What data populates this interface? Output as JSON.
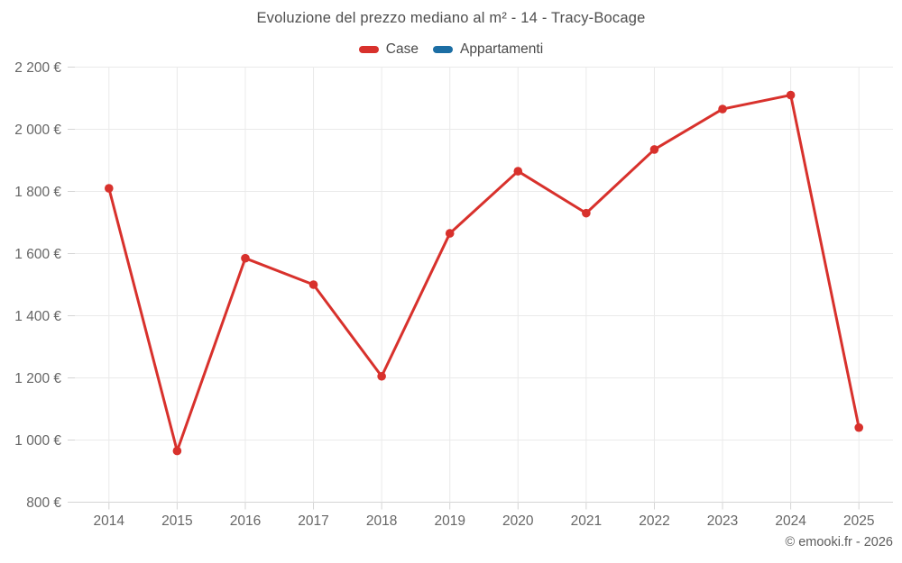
{
  "chart": {
    "title": "Evoluzione del prezzo mediano al m² - 14 - Tracy-Bocage",
    "copyright": "© emooki.fr - 2026"
  },
  "chart_data": {
    "type": "line",
    "title": "Evoluzione del prezzo mediano al m² - 14 - Tracy-Bocage",
    "categories": [
      "2014",
      "2015",
      "2016",
      "2017",
      "2018",
      "2019",
      "2020",
      "2021",
      "2022",
      "2023",
      "2024",
      "2025"
    ],
    "series": [
      {
        "name": "Case",
        "color": "#d8312c",
        "values": [
          1810,
          965,
          1585,
          1500,
          1205,
          1665,
          1865,
          1730,
          1935,
          2065,
          2110,
          1040
        ]
      },
      {
        "name": "Appartamenti",
        "color": "#1c6ea4",
        "values": []
      }
    ],
    "xlabel": "",
    "ylabel": "",
    "ylim": [
      800,
      2200
    ],
    "ytick_step": 200,
    "ytick_suffix": " €",
    "grid": true,
    "legend_position": "top",
    "colors": {
      "grid": "#eaeaea",
      "axis": "#d4d4d4",
      "tick_label": "#666666",
      "title": "#4e4e4e"
    }
  }
}
